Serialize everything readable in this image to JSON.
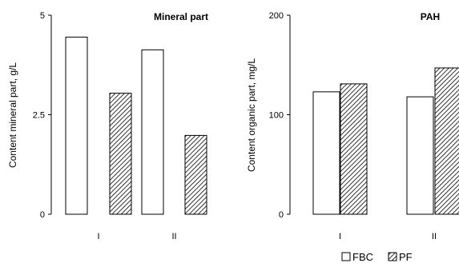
{
  "chart_data": [
    {
      "type": "bar",
      "title": "Mineral part",
      "xlabel": "",
      "ylabel": "Content mineral part, g/L",
      "ylim": [
        0,
        5
      ],
      "yticks": [
        "0",
        "2.5",
        "5"
      ],
      "categories": [
        "I",
        "II"
      ],
      "series": [
        {
          "name": "FBC",
          "values": [
            4.45,
            4.13
          ]
        },
        {
          "name": "PF",
          "values": [
            3.04,
            1.98
          ]
        }
      ]
    },
    {
      "type": "bar",
      "title": "PAH",
      "xlabel": "",
      "ylabel": "Content organic part, mg/L",
      "ylim": [
        0,
        200
      ],
      "yticks": [
        "0",
        "100",
        "200"
      ],
      "categories": [
        "I",
        "II"
      ],
      "series": [
        {
          "name": "FBC",
          "values": [
            123,
            118
          ]
        },
        {
          "name": "PF",
          "values": [
            131,
            147
          ]
        }
      ]
    }
  ],
  "legend": {
    "placement": "bottom-right",
    "items": [
      {
        "label": "FBC",
        "pattern": "white"
      },
      {
        "label": "PF",
        "pattern": "hatched"
      }
    ]
  },
  "colors": {
    "bar_stroke": "#000000",
    "fbc_fill": "#ffffff",
    "pf_hatch": "#000000"
  }
}
